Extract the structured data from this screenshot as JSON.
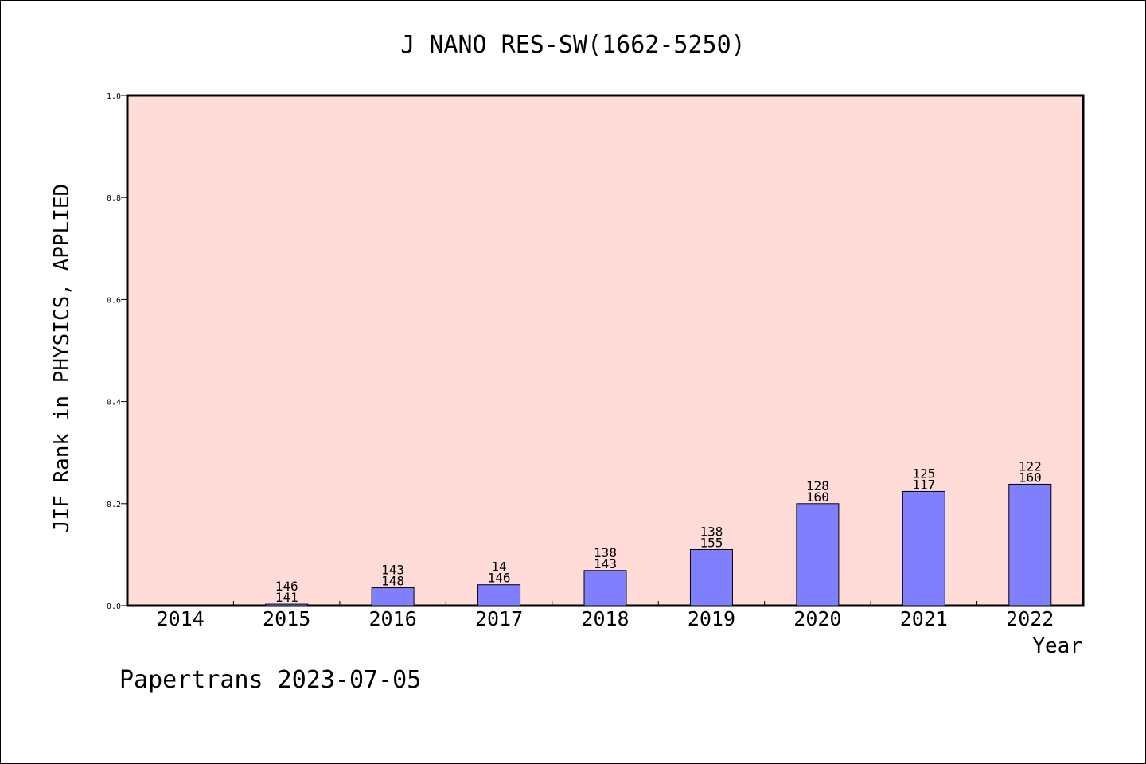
{
  "chart_data": {
    "type": "bar",
    "title": "J NANO RES-SW(1662-5250)",
    "xlabel": "Year",
    "ylabel": "JIF Rank in PHYSICS, APPLIED",
    "ylim": [
      0,
      1.0
    ],
    "yticks": [
      "0.0",
      "0.2",
      "0.4",
      "0.6",
      "0.8",
      "1.0"
    ],
    "grid": false,
    "categories": [
      "2014",
      "2015",
      "2016",
      "2017",
      "2018",
      "2019",
      "2020",
      "2021",
      "2022"
    ],
    "values": [
      null,
      0.003,
      0.035,
      0.041,
      0.069,
      0.11,
      0.2,
      0.224,
      0.238
    ],
    "rank_labels": [
      null,
      {
        "top": "146",
        "bottom": "141"
      },
      {
        "top": "143",
        "bottom": "148"
      },
      {
        "top": "14",
        "bottom": "146"
      },
      {
        "top": "138",
        "bottom": "143"
      },
      {
        "top": "138",
        "bottom": "155"
      },
      {
        "top": "128",
        "bottom": "160"
      },
      {
        "top": "125",
        "bottom": "117"
      },
      {
        "top": "122",
        "bottom": "160"
      }
    ],
    "colors": {
      "plot_background": "#ffdcd8",
      "bar_fill": "#8080ff",
      "bar_stroke": "#000000"
    }
  },
  "footer": {
    "text": "Papertrans 2023-07-05"
  }
}
